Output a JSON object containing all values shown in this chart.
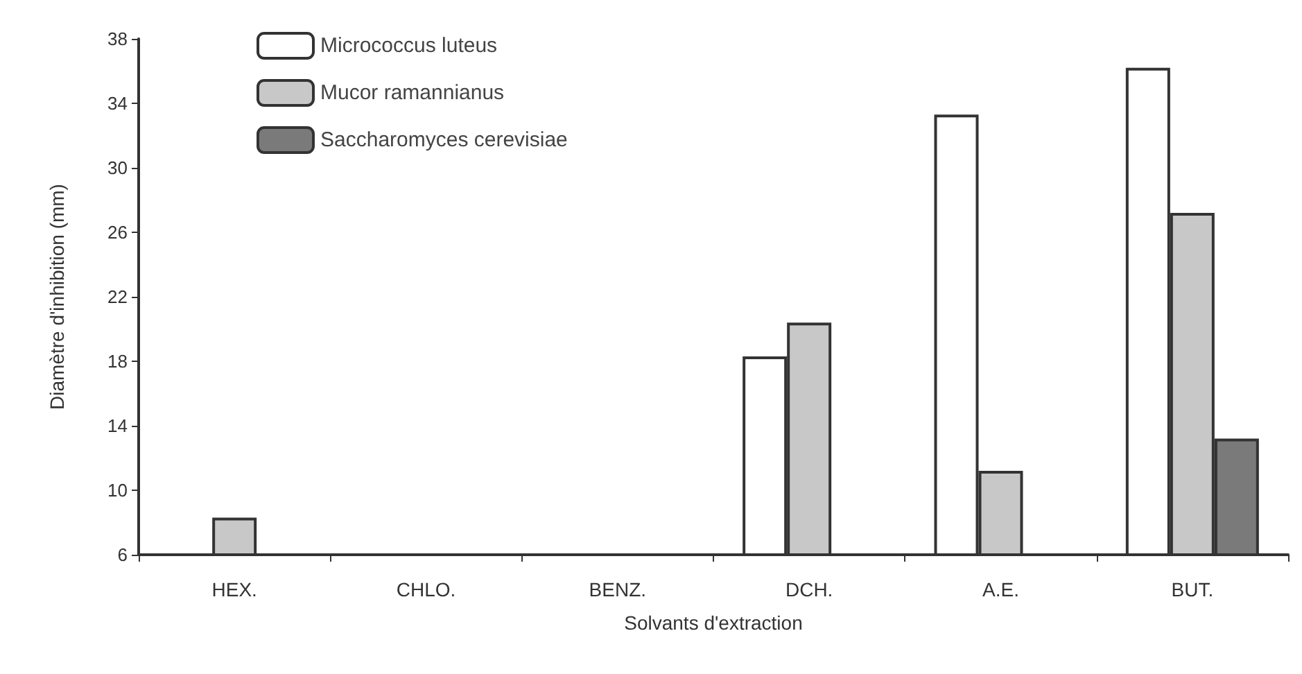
{
  "chart_data": {
    "type": "bar",
    "xlabel": "Solvants d'extraction",
    "ylabel": "Diamètre d'inhibition (mm)",
    "categories": [
      "HEX.",
      "CHLO.",
      "BENZ.",
      "DCH.",
      "A.E.",
      "BUT."
    ],
    "series": [
      {
        "name": "Micrococcus luteus",
        "color": "#ffffff",
        "values": [
          null,
          null,
          null,
          18.3,
          33.3,
          36.2
        ]
      },
      {
        "name": "Mucor ramannianus",
        "color": "#c8c8c8",
        "values": [
          8.3,
          null,
          null,
          20.4,
          11.2,
          27.2
        ]
      },
      {
        "name": "Saccharomyces cerevisiae",
        "color": "#7a7a7a",
        "values": [
          null,
          null,
          null,
          null,
          null,
          13.2
        ]
      }
    ],
    "ylim": [
      6,
      38
    ],
    "yticks": [
      6,
      10,
      14,
      18,
      22,
      26,
      30,
      34,
      38
    ],
    "grid": false,
    "legend": "top left"
  }
}
